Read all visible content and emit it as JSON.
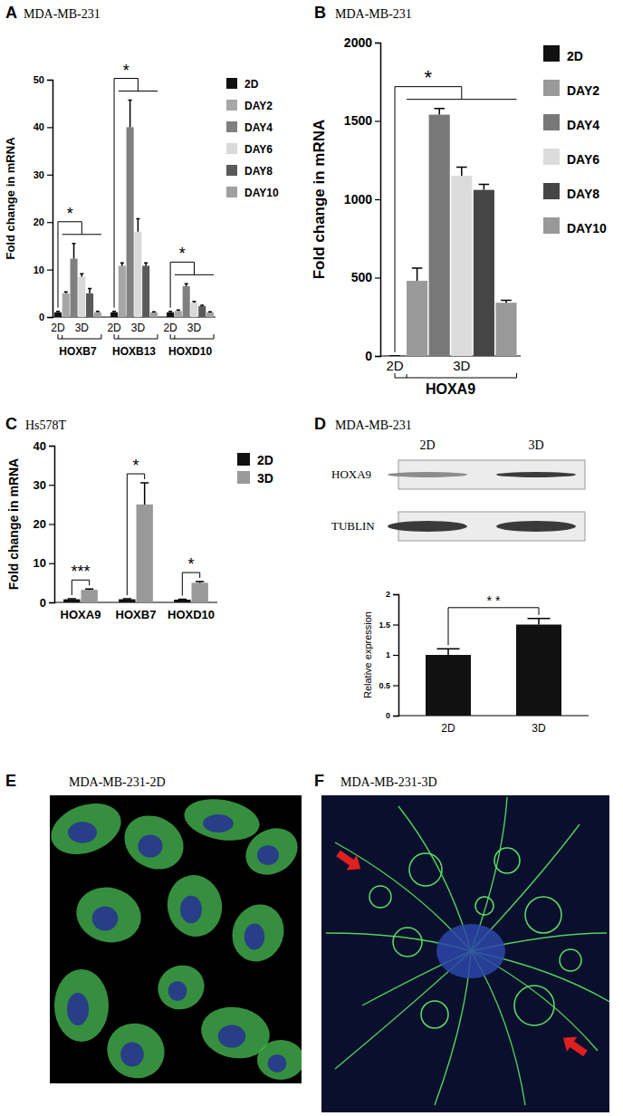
{
  "chart_data": [
    {
      "panel": "A",
      "title": "MDA-MB-231",
      "type": "bar",
      "y_label": "Fold change in mRNA",
      "categories": [
        "HOXB7",
        "HOXB13",
        "HOXD10"
      ],
      "sublabels": [
        "2D",
        "3D"
      ],
      "annotations": [
        "*",
        "*",
        "*"
      ],
      "series": [
        {
          "name": "2D",
          "color": "#111111",
          "values": [
            1,
            1,
            1
          ],
          "errors": [
            0.2,
            0.2,
            0.2
          ]
        },
        {
          "name": "DAY2",
          "color": "#a6a6a6",
          "values": [
            5,
            10.8,
            1.3
          ],
          "errors": [
            0.3,
            0.6,
            0.2
          ]
        },
        {
          "name": "DAY4",
          "color": "#808080",
          "values": [
            12.3,
            40,
            6.5
          ],
          "errors": [
            3.2,
            5.7,
            0.5
          ]
        },
        {
          "name": "DAY6",
          "color": "#d9d9d9",
          "values": [
            8.5,
            18,
            3
          ],
          "errors": [
            0.6,
            2.7,
            0.3
          ]
        },
        {
          "name": "DAY8",
          "color": "#5a5a5a",
          "values": [
            5,
            10.8,
            2.3
          ],
          "errors": [
            1,
            0.6,
            0.2
          ]
        },
        {
          "name": "DAY10",
          "color": "#a0a0a0",
          "values": [
            1,
            1,
            1
          ],
          "errors": [
            0.2,
            0.1,
            0.1
          ]
        }
      ],
      "ylim": [
        0,
        50
      ],
      "yticks": [
        0,
        10,
        20,
        30,
        40,
        50
      ],
      "legend": "right"
    },
    {
      "panel": "B",
      "title": "MDA-MB-231",
      "type": "bar",
      "y_label": "Fold change in mRNA",
      "categories": [
        "HOXA9"
      ],
      "sublabels": [
        "2D",
        "3D"
      ],
      "annotations": [
        "*"
      ],
      "series": [
        {
          "name": "2D",
          "color": "#111111",
          "values": [
            1
          ],
          "errors": [
            0
          ]
        },
        {
          "name": "DAY2",
          "color": "#9a9a9a",
          "values": [
            480
          ],
          "errors": [
            80
          ]
        },
        {
          "name": "DAY4",
          "color": "#787878",
          "values": [
            1540
          ],
          "errors": [
            40
          ]
        },
        {
          "name": "DAY6",
          "color": "#dcdcdc",
          "values": [
            1150
          ],
          "errors": [
            55
          ]
        },
        {
          "name": "DAY8",
          "color": "#454545",
          "values": [
            1060
          ],
          "errors": [
            35
          ]
        },
        {
          "name": "DAY10",
          "color": "#999999",
          "values": [
            340
          ],
          "errors": [
            15
          ]
        }
      ],
      "ylim": [
        0,
        2000
      ],
      "yticks": [
        0,
        500,
        1000,
        1500,
        2000
      ],
      "legend": "right"
    },
    {
      "panel": "C",
      "title": "Hs578T",
      "type": "bar",
      "y_label": "Fold change in mRNA",
      "categories": [
        "HOXA9",
        "HOXB7",
        "HOXD10"
      ],
      "annotations": [
        "***",
        "*",
        "*"
      ],
      "series": [
        {
          "name": "2D",
          "color": "#111111",
          "values": [
            0.8,
            0.8,
            0.7
          ],
          "errors": [
            0.1,
            0.1,
            0.1
          ]
        },
        {
          "name": "3D",
          "color": "#999999",
          "values": [
            3.2,
            25,
            5
          ],
          "errors": [
            0.2,
            5.5,
            0.3
          ]
        }
      ],
      "ylim": [
        0,
        40
      ],
      "yticks": [
        0,
        10,
        20,
        30,
        40
      ],
      "legend": "top-right"
    },
    {
      "panel": "D",
      "title": "MDA-MB-231",
      "type": "bar",
      "y_label": "Relative expression",
      "categories": [
        "2D",
        "3D"
      ],
      "values": [
        1,
        1.5
      ],
      "errors": [
        0.1,
        0.1
      ],
      "color": "#111111",
      "annotation": "* *",
      "ylim": [
        0,
        2
      ],
      "yticks": [
        0,
        0.5,
        1,
        1.5,
        2
      ]
    }
  ],
  "blot": {
    "lanes": [
      "2D",
      "3D"
    ],
    "rows": [
      "HOXA9",
      "TUBLIN"
    ]
  },
  "images": [
    {
      "panel": "E",
      "title": "MDA-MB-231-2D"
    },
    {
      "panel": "F",
      "title": "MDA-MB-231-3D"
    }
  ]
}
